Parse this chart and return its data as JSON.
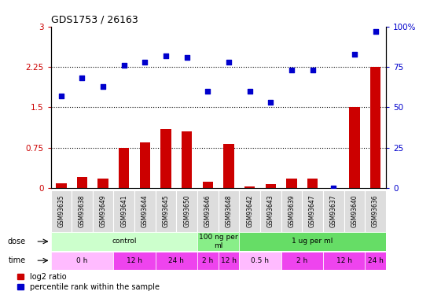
{
  "title": "GDS1753 / 26163",
  "samples": [
    "GSM93635",
    "GSM93638",
    "GSM93649",
    "GSM93641",
    "GSM93644",
    "GSM93645",
    "GSM93650",
    "GSM93646",
    "GSM93648",
    "GSM93642",
    "GSM93643",
    "GSM93639",
    "GSM93647",
    "GSM93637",
    "GSM93640",
    "GSM93636"
  ],
  "log2_ratio": [
    0.08,
    0.2,
    0.18,
    0.75,
    0.85,
    1.1,
    1.05,
    0.12,
    0.82,
    0.02,
    0.07,
    0.18,
    0.18,
    0.0,
    1.5,
    2.25
  ],
  "percentile_scaled": [
    1.71,
    2.04,
    1.89,
    2.28,
    2.34,
    2.46,
    2.43,
    1.8,
    2.34,
    1.8,
    1.59,
    2.19,
    2.19,
    0.0,
    2.49,
    2.91
  ],
  "bar_color": "#cc0000",
  "dot_color": "#0000cc",
  "ylim": [
    0,
    3
  ],
  "yticks_left": [
    0,
    0.75,
    1.5,
    2.25,
    3
  ],
  "ytick_labels_left": [
    "0",
    "0.75",
    "1.5",
    "2.25",
    "3"
  ],
  "ytick_labels_right": [
    "0",
    "25",
    "50",
    "75",
    "100%"
  ],
  "hlines": [
    0.75,
    1.5,
    2.25
  ],
  "dose_groups": [
    {
      "label": "control",
      "start": 0,
      "end": 7,
      "color": "#ccffcc"
    },
    {
      "label": "100 ng per\nml",
      "start": 7,
      "end": 9,
      "color": "#88ee88"
    },
    {
      "label": "1 ug per ml",
      "start": 9,
      "end": 16,
      "color": "#66dd66"
    }
  ],
  "time_groups": [
    {
      "label": "0 h",
      "start": 0,
      "end": 3,
      "color": "#ffbbff"
    },
    {
      "label": "12 h",
      "start": 3,
      "end": 5,
      "color": "#ee44ee"
    },
    {
      "label": "24 h",
      "start": 5,
      "end": 7,
      "color": "#ee44ee"
    },
    {
      "label": "2 h",
      "start": 7,
      "end": 8,
      "color": "#ee44ee"
    },
    {
      "label": "12 h",
      "start": 8,
      "end": 9,
      "color": "#ee44ee"
    },
    {
      "label": "0.5 h",
      "start": 9,
      "end": 11,
      "color": "#ffbbff"
    },
    {
      "label": "2 h",
      "start": 11,
      "end": 13,
      "color": "#ee44ee"
    },
    {
      "label": "12 h",
      "start": 13,
      "end": 15,
      "color": "#ee44ee"
    },
    {
      "label": "24 h",
      "start": 15,
      "end": 16,
      "color": "#ee44ee"
    }
  ],
  "legend_items": [
    {
      "label": "log2 ratio",
      "color": "#cc0000"
    },
    {
      "label": "percentile rank within the sample",
      "color": "#0000cc"
    }
  ],
  "bg_color": "#ffffff",
  "tick_color_left": "#cc0000",
  "tick_color_right": "#0000cc",
  "sample_box_color": "#dddddd",
  "hline_color": "#000000"
}
